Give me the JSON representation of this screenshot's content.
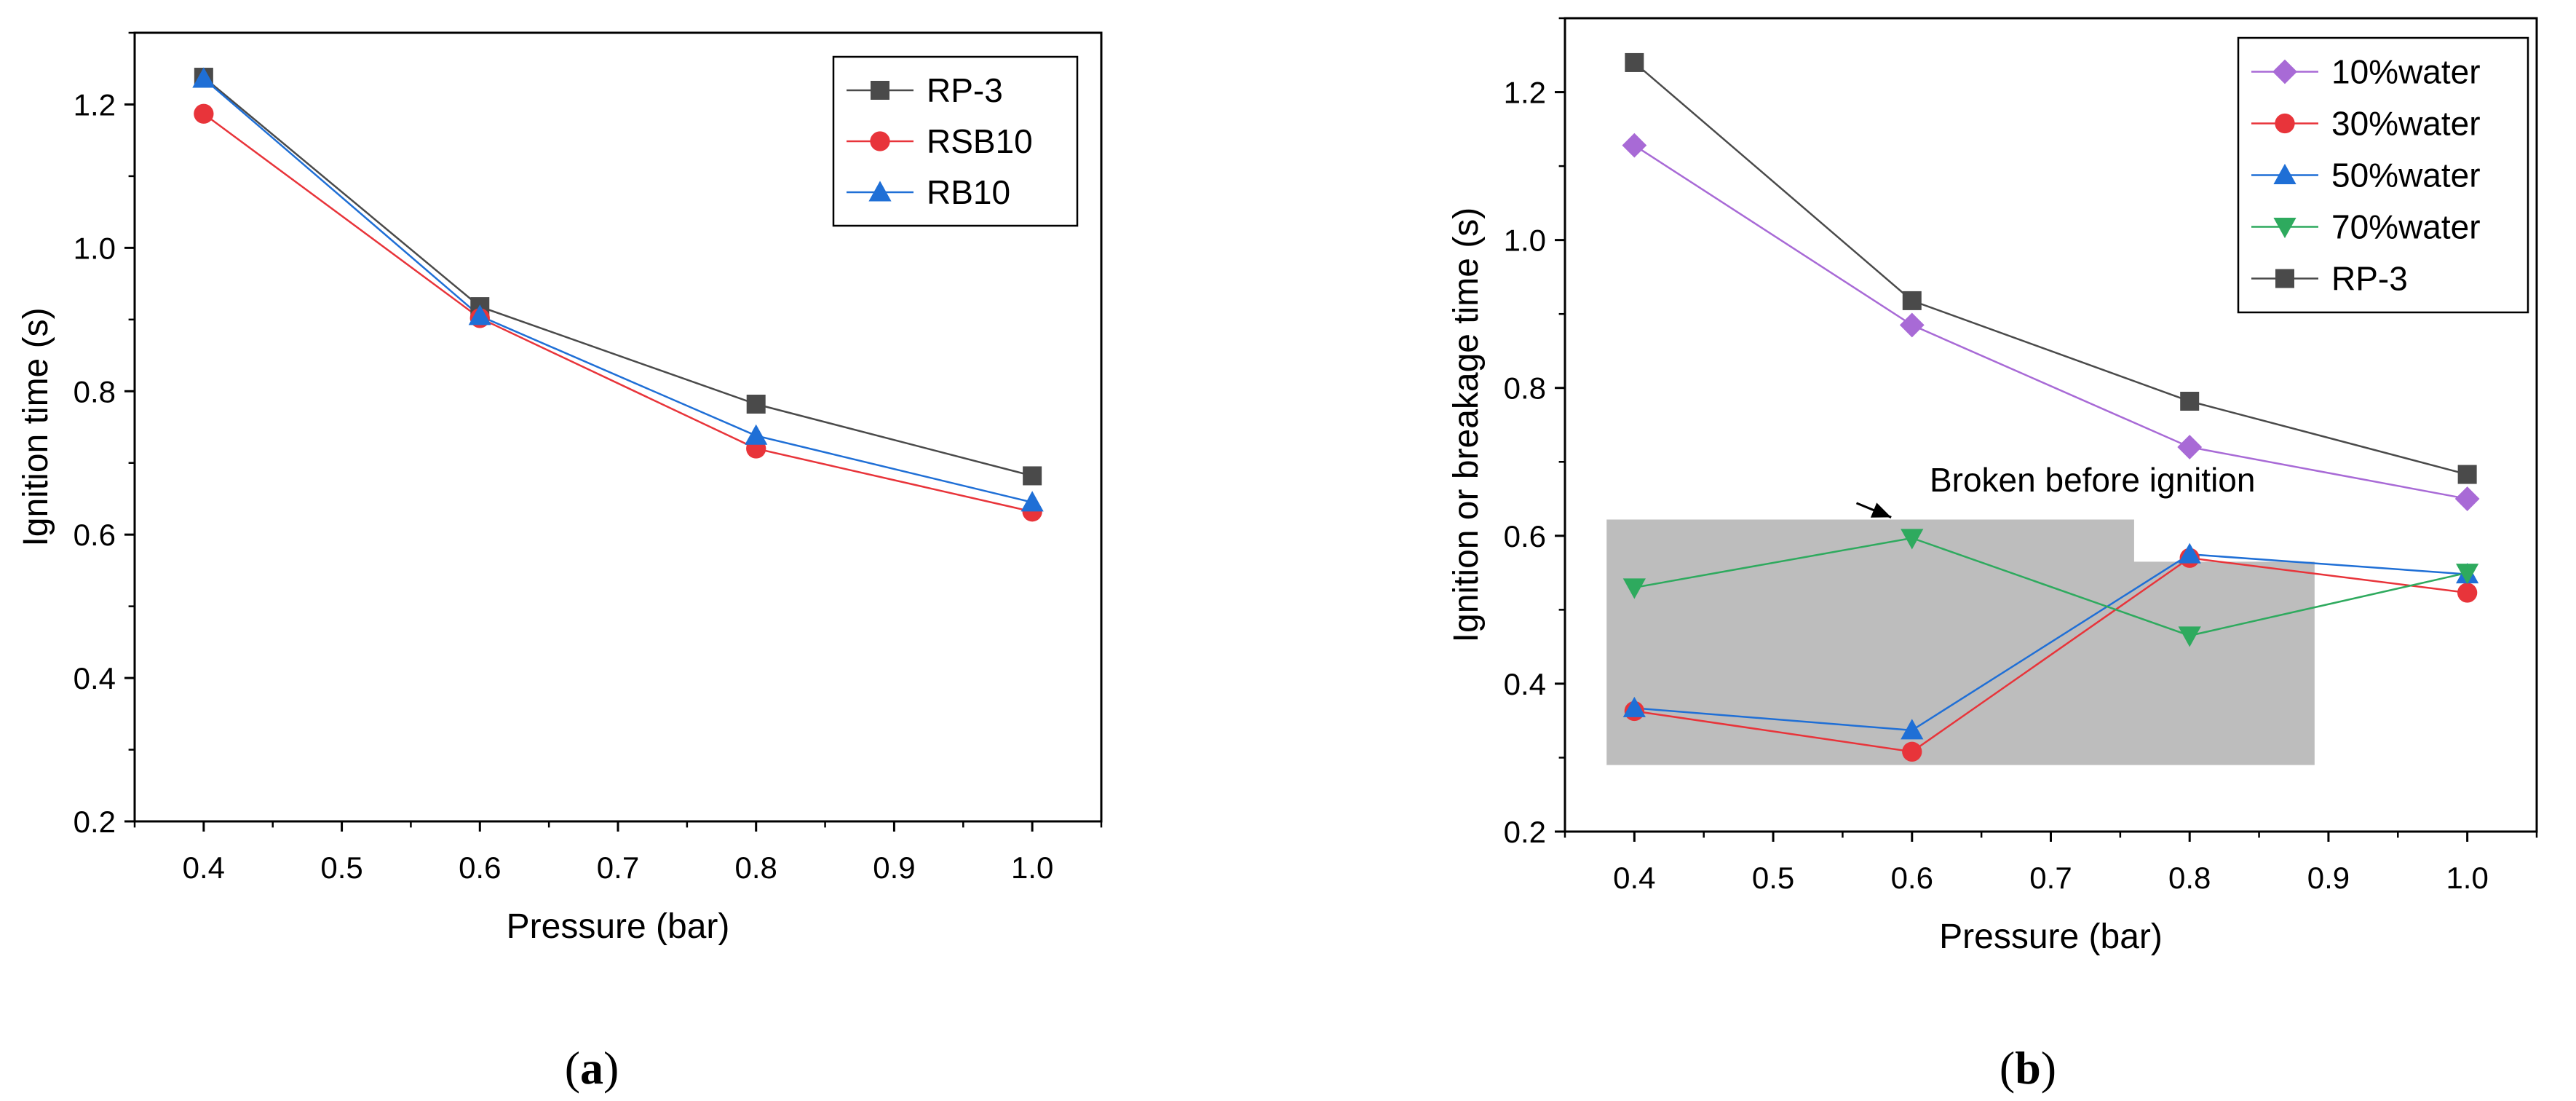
{
  "chart_data": [
    {
      "type": "line",
      "panel_label": "a",
      "title": "",
      "xlabel": "Pressure (bar)",
      "ylabel": "Ignition time (s)",
      "xlim": [
        0.35,
        1.05
      ],
      "ylim": [
        0.2,
        1.3
      ],
      "xticks": [
        0.4,
        0.5,
        0.6,
        0.7,
        0.8,
        0.9,
        1.0
      ],
      "xtick_labels": [
        "0.4",
        "0.5",
        "0.6",
        "0.7",
        "0.8",
        "0.9",
        "1.0"
      ],
      "yticks": [
        0.2,
        0.4,
        0.6,
        0.8,
        1.0,
        1.2
      ],
      "ytick_labels": [
        "0.2",
        "0.4",
        "0.6",
        "0.8",
        "1.0",
        "1.2"
      ],
      "grid": false,
      "legend_position": "top-right",
      "x": [
        0.4,
        0.6,
        0.8,
        1.0
      ],
      "series": [
        {
          "name": "RP-3",
          "marker": "square",
          "color": "#4a4a4a",
          "values": [
            1.238,
            0.918,
            0.782,
            0.682
          ]
        },
        {
          "name": "RSB10",
          "marker": "circle",
          "color": "#e8343a",
          "values": [
            1.187,
            0.902,
            0.72,
            0.632
          ]
        },
        {
          "name": "RB10",
          "marker": "triangle-up",
          "color": "#1f6fd6",
          "values": [
            1.236,
            0.905,
            0.738,
            0.645
          ]
        }
      ]
    },
    {
      "type": "line",
      "panel_label": "b",
      "title": "",
      "xlabel": "Pressure (bar)",
      "ylabel": "Ignition or breakage time (s)",
      "xlim": [
        0.35,
        1.05
      ],
      "ylim": [
        0.2,
        1.3
      ],
      "xticks": [
        0.4,
        0.5,
        0.6,
        0.7,
        0.8,
        0.9,
        1.0
      ],
      "xtick_labels": [
        "0.4",
        "0.5",
        "0.6",
        "0.7",
        "0.8",
        "0.9",
        "1.0"
      ],
      "yticks": [
        0.2,
        0.4,
        0.6,
        0.8,
        1.0,
        1.2
      ],
      "ytick_labels": [
        "0.2",
        "0.4",
        "0.6",
        "0.8",
        "1.0",
        "1.2"
      ],
      "grid": false,
      "legend_position": "top-right",
      "x": [
        0.4,
        0.6,
        0.8,
        1.0
      ],
      "series": [
        {
          "name": "10%water",
          "marker": "diamond",
          "color": "#a86ad6",
          "values": [
            1.128,
            0.885,
            0.72,
            0.65
          ]
        },
        {
          "name": "30%water",
          "marker": "circle",
          "color": "#e8343a",
          "values": [
            0.363,
            0.308,
            0.57,
            0.523
          ]
        },
        {
          "name": "50%water",
          "marker": "triangle-up",
          "color": "#1f6fd6",
          "values": [
            0.367,
            0.337,
            0.575,
            0.548
          ]
        },
        {
          "name": "70%water",
          "marker": "triangle-down",
          "color": "#2eaa5e",
          "values": [
            0.53,
            0.597,
            0.465,
            0.55
          ]
        },
        {
          "name": "RP-3",
          "marker": "square",
          "color": "#4a4a4a",
          "values": [
            1.24,
            0.918,
            0.782,
            0.683
          ]
        }
      ],
      "shaded_region": {
        "color": "#bdbdbd",
        "outline": [
          [
            0.38,
            0.29
          ],
          [
            0.38,
            0.622
          ],
          [
            0.76,
            0.622
          ],
          [
            0.76,
            0.565
          ],
          [
            0.89,
            0.565
          ],
          [
            0.89,
            0.29
          ]
        ]
      },
      "annotation": {
        "text": "Broken before ignition",
        "text_anchor": [
          0.73,
          0.66
        ],
        "arrow_from": [
          0.56,
          0.66
        ],
        "arrow_to": [
          0.585,
          0.625
        ]
      }
    }
  ]
}
